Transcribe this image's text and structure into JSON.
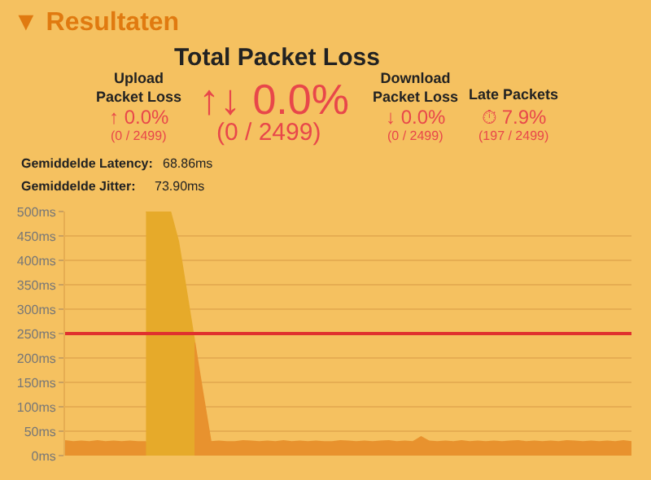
{
  "chart_data": {
    "type": "area",
    "title": "▼ Resultaten",
    "annotations": [
      "Total Packet Loss",
      "Upload\nPacket Loss",
      "↑ 0.0%",
      "(0 / 2499)",
      "↑↓ 0.0%",
      "(0 / 2499)",
      "Download\nPacket Loss",
      "↓ 0.0%",
      "(0 / 2499)",
      "Late Packets",
      "⏱ 7.9%",
      "(197 / 2499)",
      "Gemiddelde Latency:",
      "68.86ms",
      "Gemiddelde Jitter:",
      "73.90ms"
    ],
    "series": [
      {
        "color": "#e8922e",
        "values": [
          30,
          28,
          29,
          28,
          30,
          28,
          29,
          28,
          29,
          28,
          28,
          null,
          null,
          null,
          null,
          null,
          232,
          129,
          28,
          29,
          28,
          28,
          30,
          29,
          28,
          29,
          28,
          30,
          28,
          29,
          28,
          29,
          28,
          28,
          30,
          29,
          28,
          29,
          28,
          29,
          30,
          28,
          29,
          28,
          38,
          29,
          28,
          29,
          28,
          30,
          28,
          29,
          28,
          29,
          28,
          29,
          30,
          28,
          29,
          28,
          29,
          28,
          30,
          29,
          28,
          29,
          28,
          29,
          28,
          30,
          28
        ]
      },
      {
        "color": "#e6aa2a",
        "values": [
          null,
          null,
          null,
          null,
          null,
          null,
          null,
          null,
          null,
          null,
          500,
          500,
          500,
          500,
          438,
          335,
          232,
          null,
          null,
          null,
          null,
          null,
          null,
          null,
          null,
          null,
          null,
          null,
          null,
          null,
          null,
          null,
          null,
          null,
          null,
          null,
          null,
          null,
          null,
          null,
          null,
          null,
          null,
          null,
          null,
          null,
          null,
          null,
          null,
          null,
          null,
          null,
          null,
          null,
          null,
          null,
          null,
          null,
          null,
          null,
          null,
          null,
          null,
          null,
          null,
          null,
          null,
          null,
          null,
          null,
          null
        ]
      }
    ],
    "categories": [
      null,
      null,
      null,
      null,
      null,
      null,
      null,
      null,
      null,
      null,
      null,
      null,
      null,
      null,
      null,
      null,
      null,
      null,
      null,
      null,
      null,
      null,
      null,
      null,
      null,
      null,
      null,
      null,
      null,
      null,
      null,
      null,
      null,
      null,
      null,
      null,
      null,
      null,
      null,
      null,
      null,
      null,
      null,
      null,
      null,
      null,
      null,
      null,
      null,
      null,
      null,
      null,
      null,
      null,
      null,
      null,
      null,
      null,
      null,
      null,
      null,
      null,
      null,
      null,
      null,
      null,
      null,
      null,
      null,
      null,
      null
    ],
    "ylim": [
      0,
      500
    ],
    "yticks": [
      {
        "value": 0,
        "label": "0ms"
      },
      {
        "value": 50,
        "label": "50ms"
      },
      {
        "value": 100,
        "label": "100ms"
      },
      {
        "value": 150,
        "label": "150ms"
      },
      {
        "value": 200,
        "label": "200ms"
      },
      {
        "value": 250,
        "label": "250ms"
      },
      {
        "value": 300,
        "label": "300ms"
      },
      {
        "value": 350,
        "label": "350ms"
      },
      {
        "value": 400,
        "label": "400ms"
      },
      {
        "value": 450,
        "label": "450ms"
      },
      {
        "value": 500,
        "label": "500ms"
      }
    ],
    "ref_lines": [
      {
        "axis": "y",
        "value": 250,
        "color": "#e0302e"
      }
    ],
    "grid": "y",
    "tick_labels": "y"
  }
}
